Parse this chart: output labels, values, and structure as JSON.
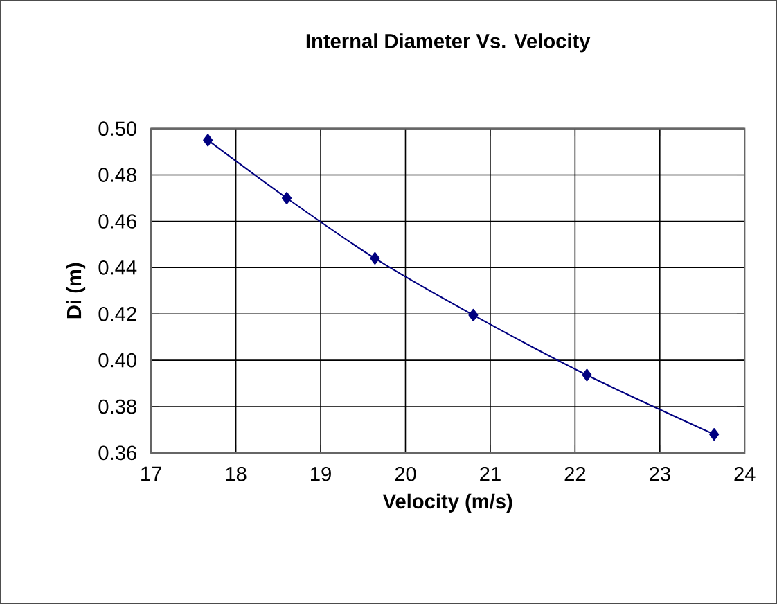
{
  "chart_data": {
    "type": "line",
    "title": "Internal Diameter Vs. Velocity",
    "xlabel": "Velocity (m/s)",
    "ylabel": "Di (m)",
    "xlim": [
      17,
      24
    ],
    "xticks": [
      17,
      18,
      19,
      20,
      21,
      22,
      23,
      24
    ],
    "ylim": [
      0.36,
      0.5
    ],
    "yticks": [
      {
        "value": 0.36,
        "label": "0.36"
      },
      {
        "value": 0.38,
        "label": "0.38"
      },
      {
        "value": 0.4,
        "label": "0.40"
      },
      {
        "value": 0.42,
        "label": "0.42"
      },
      {
        "value": 0.44,
        "label": "0.44"
      },
      {
        "value": 0.46,
        "label": "0.46"
      },
      {
        "value": 0.48,
        "label": "0.48"
      },
      {
        "value": 0.5,
        "label": "0.50"
      }
    ],
    "grid": true,
    "marker": "diamond",
    "line_style": "solid",
    "series": [
      {
        "color": "#000080",
        "x": [
          17.67,
          18.6,
          19.64,
          20.8,
          22.14,
          23.64
        ],
        "values": [
          0.495,
          0.47,
          0.444,
          0.4195,
          0.3936,
          0.368
        ]
      }
    ]
  }
}
